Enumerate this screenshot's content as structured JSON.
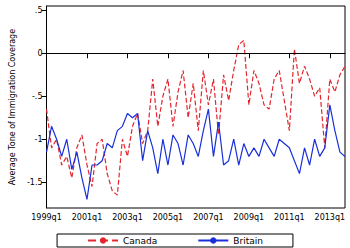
{
  "chart_data": {
    "type": "line",
    "y_label": "Average Tone of Immigration Coverage",
    "categories": [
      "1999q1",
      null,
      null,
      null,
      null,
      null,
      null,
      null,
      "2001q1",
      null,
      null,
      null,
      null,
      null,
      null,
      null,
      "2003q1",
      null,
      null,
      null,
      null,
      null,
      null,
      null,
      "2005q1",
      null,
      null,
      null,
      null,
      null,
      null,
      null,
      "2007q1",
      null,
      null,
      null,
      null,
      null,
      null,
      null,
      "2009q1",
      null,
      null,
      null,
      null,
      null,
      null,
      null,
      "2011q1",
      null,
      null,
      null,
      null,
      null,
      null,
      null,
      "2013q1",
      null,
      null,
      null
    ],
    "series": [
      {
        "name": "Canada",
        "color": "#e3262e",
        "line_style": "dashed",
        "values": [
          -0.65,
          -1.1,
          -1.0,
          -1.3,
          -1.2,
          -1.45,
          -1.1,
          -0.95,
          -1.3,
          -1.55,
          -1.05,
          -1.0,
          -1.4,
          -1.6,
          -1.65,
          -1.0,
          -1.2,
          -0.85,
          -0.7,
          -1.05,
          -0.9,
          -0.3,
          -0.85,
          -0.5,
          -0.3,
          -0.85,
          -0.45,
          -0.2,
          -0.75,
          -0.35,
          -0.9,
          -0.2,
          -0.6,
          -0.3,
          -0.95,
          -0.25,
          -0.55,
          -0.2,
          0.1,
          0.15,
          -0.6,
          -0.2,
          -0.35,
          -0.6,
          -0.65,
          -0.3,
          -0.2,
          -0.55,
          -0.9,
          0.05,
          -0.35,
          -0.15,
          -0.3,
          -0.5,
          -0.4,
          -1.1,
          -0.3,
          -0.45,
          -0.25,
          -0.15
        ]
      },
      {
        "name": "Britain",
        "color": "#1a2fd9",
        "line_style": "solid",
        "values": [
          -1.15,
          -0.85,
          -1.0,
          -1.2,
          -1.0,
          -1.35,
          -1.15,
          -1.45,
          -1.7,
          -1.3,
          -1.3,
          -1.25,
          -1.05,
          -1.1,
          -0.9,
          -0.85,
          -0.7,
          -0.75,
          -0.7,
          -1.25,
          -0.9,
          -1.1,
          -1.4,
          -1.0,
          -1.3,
          -0.95,
          -1.05,
          -1.3,
          -0.95,
          -1.05,
          -1.2,
          -0.9,
          -0.65,
          -1.2,
          -0.8,
          -1.3,
          -1.25,
          -1.0,
          -1.3,
          -1.05,
          -1.2,
          -1.1,
          -1.2,
          -1.0,
          -1.1,
          -1.2,
          -1.0,
          -1.05,
          -1.1,
          -1.25,
          -1.4,
          -1.1,
          -1.3,
          -1.0,
          -1.2,
          -1.1,
          -0.6,
          -0.9,
          -1.15,
          -1.2
        ]
      }
    ],
    "ylim": [
      -1.8,
      0.55
    ],
    "yticks": [
      {
        "value": -1.5,
        "label": "-1.5"
      },
      {
        "value": -1,
        "label": "-1"
      },
      {
        "value": -0.5,
        "label": "-.5"
      },
      0,
      {
        "value": 0.5,
        "label": ".5"
      }
    ],
    "hline": 0,
    "grid": false,
    "legend": "bottom"
  }
}
